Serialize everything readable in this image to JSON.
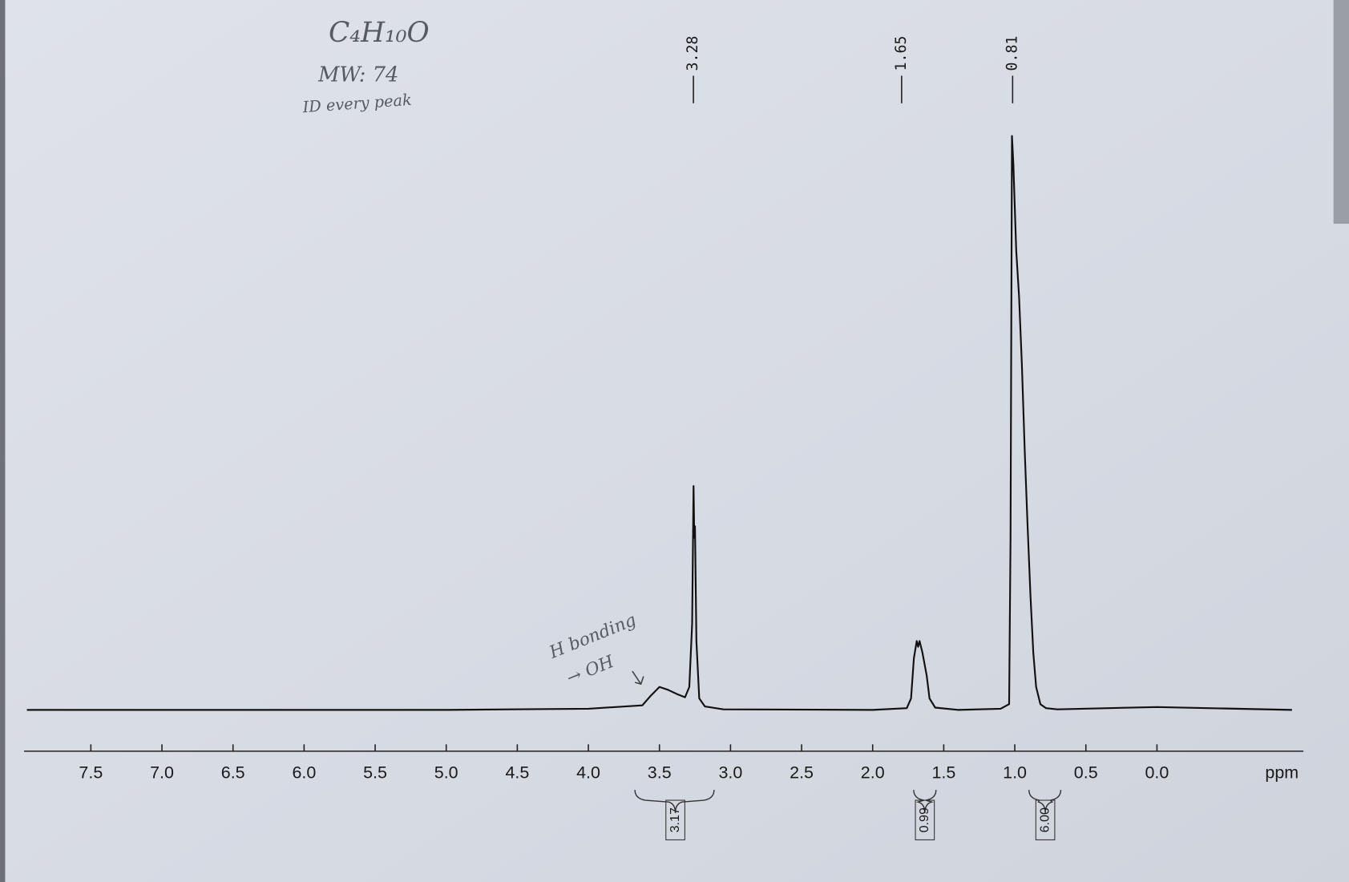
{
  "chart_data": {
    "type": "line",
    "annotations": {
      "formula": "C₄H₁₀O",
      "mw": "MW: 74",
      "note": "ID every peak",
      "h_bonding": "H bonding",
      "oh": "→ OH"
    },
    "x_label": "ppm",
    "xlim": [
      8.0,
      -1.0
    ],
    "ylim": [
      0,
      100
    ],
    "xticks": [
      {
        "value": 7.5,
        "label": "7.5"
      },
      {
        "value": 7.0,
        "label": "7.0"
      },
      {
        "value": 6.5,
        "label": "6.5"
      },
      {
        "value": 6.0,
        "label": "6.0"
      },
      {
        "value": 5.5,
        "label": "5.5"
      },
      {
        "value": 5.0,
        "label": "5.0"
      },
      {
        "value": 4.5,
        "label": "4.5"
      },
      {
        "value": 4.0,
        "label": "4.0"
      },
      {
        "value": 3.5,
        "label": "3.5"
      },
      {
        "value": 3.0,
        "label": "3.0"
      },
      {
        "value": 2.5,
        "label": "2.5"
      },
      {
        "value": 2.0,
        "label": "2.0"
      },
      {
        "value": 1.5,
        "label": "1.5"
      },
      {
        "value": 1.0,
        "label": "1.0"
      },
      {
        "value": 0.5,
        "label": "0.5"
      },
      {
        "value": 0,
        "label": "0.0"
      }
    ],
    "series": [
      {
        "color": "#111111",
        "x": [
          7.95,
          5.0,
          4.0,
          3.62,
          3.56,
          3.5,
          3.44,
          3.38,
          3.32,
          3.29,
          3.27,
          3.26,
          3.255,
          3.25,
          3.24,
          3.22,
          3.18,
          3.05,
          2.0,
          1.76,
          1.73,
          1.71,
          1.69,
          1.68,
          1.67,
          1.65,
          1.62,
          1.6,
          1.56,
          1.4,
          1.1,
          1.04,
          1.03,
          1.02,
          1.01,
          0.99,
          0.97,
          0.95,
          0.93,
          0.91,
          0.89,
          0.87,
          0.85,
          0.82,
          0.78,
          0.7,
          0.0,
          -0.95
        ],
        "values": [
          0,
          0,
          0.2,
          0.8,
          2.5,
          4,
          3.5,
          2.8,
          2.2,
          4,
          15,
          39,
          30,
          32,
          12,
          2,
          0.6,
          0.1,
          0,
          0.3,
          2,
          9,
          12,
          11,
          12,
          10,
          6,
          2,
          0.4,
          0,
          0.2,
          1,
          30,
          100,
          95,
          80,
          72,
          60,
          45,
          32,
          20,
          10,
          4,
          1,
          0.3,
          0.1,
          0.5,
          0
        ]
      }
    ],
    "peak_labels": [
      3.28,
      1.65,
      0.81
    ],
    "integrals": [
      3.17,
      0.99,
      {
        "value": 6,
        "label": "6.00"
      }
    ]
  }
}
